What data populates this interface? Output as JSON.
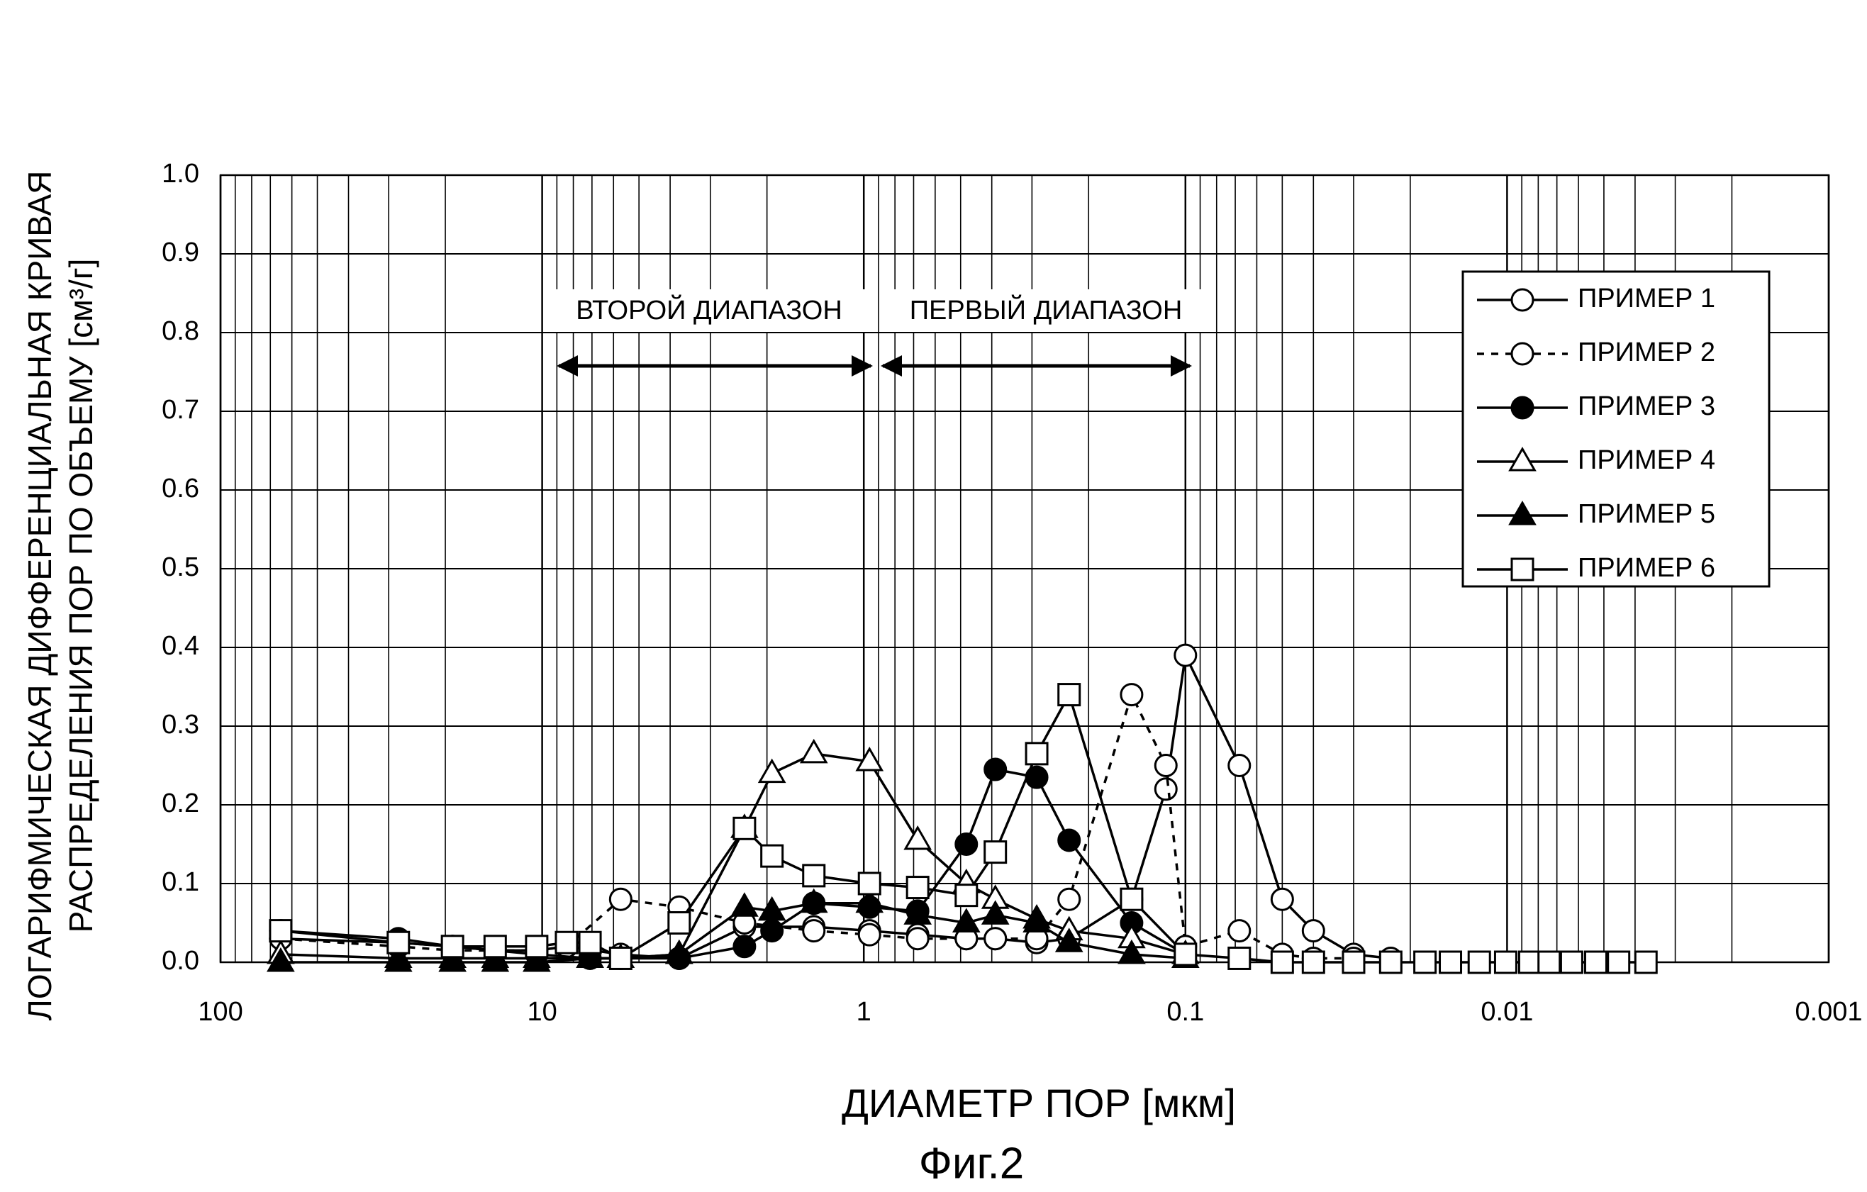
{
  "chart_data": {
    "type": "line",
    "y_title_lines": [
      "ЛОГАРИФМИЧЕСКАЯ ДИФФЕРЕНЦИАЛЬНАЯ КРИВАЯ",
      "РАСПРЕДЕЛЕНИЯ ПОР ПО ОБЪЕМУ [см³/г]"
    ],
    "x_title": "ДИАМЕТР ПОР [мкм]",
    "caption": "Фиг.2",
    "annotations": [
      "ВТОРОЙ ДИАПАЗОН",
      "ПЕРВЫЙ ДИАПАЗОН"
    ],
    "x_log": true,
    "grid": true,
    "minor_grid": true,
    "legend": "upper right",
    "xlim": [
      100,
      0.001
    ],
    "xticks": [
      100,
      10,
      1,
      0.1,
      0.01,
      0.001
    ],
    "ylim": [
      0,
      1
    ],
    "yticks": [
      {
        "value": 0,
        "label": "0.0"
      },
      0.1,
      0.2,
      0.3,
      0.4,
      0.5,
      0.6,
      0.7,
      0.8,
      0.9,
      {
        "value": 1,
        "label": "1.0"
      }
    ],
    "series": [
      {
        "name": "ПРИМЕР 1",
        "color": "#000000",
        "marker": "circle",
        "filled": false,
        "dash": false,
        "x": [
          65,
          28,
          19,
          14,
          10.4,
          8.4,
          5.7,
          3.75,
          2.35,
          1.43,
          0.96,
          0.68,
          0.48,
          0.39,
          0.29,
          0.23,
          0.147,
          0.115,
          0.1,
          0.068,
          0.05,
          0.04,
          0.03,
          0.023
        ],
        "values": [
          0.03,
          0.025,
          0.02,
          0.015,
          0.015,
          0.02,
          0.01,
          0.005,
          0.045,
          0.045,
          0.04,
          0.035,
          0.03,
          0.03,
          0.025,
          0.03,
          0.08,
          0.22,
          0.39,
          0.25,
          0.08,
          0.04,
          0.01,
          0.005
        ]
      },
      {
        "name": "ПРИМЕР 2",
        "color": "#000000",
        "marker": "circle",
        "filled": false,
        "dash": true,
        "x": [
          65,
          28,
          19,
          14,
          10.4,
          8.4,
          5.7,
          3.75,
          2.35,
          1.43,
          0.96,
          0.68,
          0.48,
          0.39,
          0.29,
          0.23,
          0.147,
          0.115,
          0.1,
          0.068,
          0.05,
          0.04,
          0.03
        ],
        "values": [
          0.03,
          0.02,
          0.015,
          0.015,
          0.015,
          0.02,
          0.08,
          0.07,
          0.05,
          0.04,
          0.035,
          0.03,
          0.03,
          0.03,
          0.03,
          0.08,
          0.34,
          0.25,
          0.02,
          0.04,
          0.01,
          0.005,
          0.005
        ]
      },
      {
        "name": "ПРИМЕР 3",
        "color": "#000000",
        "marker": "circle",
        "filled": true,
        "dash": false,
        "x": [
          65,
          28,
          19,
          14,
          10.4,
          7.1,
          5.7,
          3.75,
          2.35,
          1.93,
          1.43,
          0.96,
          0.68,
          0.48,
          0.39,
          0.29,
          0.23,
          0.147,
          0.1
        ],
        "values": [
          0.04,
          0.03,
          0.02,
          0.015,
          0.01,
          0.005,
          0.005,
          0.005,
          0.02,
          0.04,
          0.075,
          0.07,
          0.065,
          0.15,
          0.245,
          0.235,
          0.155,
          0.05,
          0.01
        ]
      },
      {
        "name": "ПРИМЕР 4",
        "color": "#000000",
        "marker": "triangle",
        "filled": false,
        "dash": false,
        "x": [
          65,
          28,
          19,
          14,
          10.4,
          7.1,
          5.7,
          3.75,
          2.35,
          1.93,
          1.43,
          0.96,
          0.68,
          0.48,
          0.39,
          0.29,
          0.23,
          0.147,
          0.1
        ],
        "values": [
          0.01,
          0.005,
          0.005,
          0.005,
          0.005,
          0.005,
          0.005,
          0.01,
          0.17,
          0.24,
          0.265,
          0.255,
          0.155,
          0.1,
          0.08,
          0.055,
          0.04,
          0.03,
          0.01
        ]
      },
      {
        "name": "ПРИМЕР 5",
        "color": "#000000",
        "marker": "triangle",
        "filled": true,
        "dash": false,
        "x": [
          65,
          28,
          19,
          14,
          10.4,
          7.1,
          5.7,
          3.75,
          2.35,
          1.93,
          1.43,
          0.96,
          0.68,
          0.48,
          0.39,
          0.29,
          0.23,
          0.147,
          0.1
        ],
        "values": [
          0,
          0,
          0,
          0,
          0,
          0.005,
          0.005,
          0.01,
          0.07,
          0.065,
          0.075,
          0.075,
          0.06,
          0.05,
          0.06,
          0.05,
          0.025,
          0.01,
          0.005
        ]
      },
      {
        "name": "ПРИМЕР 6",
        "color": "#000000",
        "marker": "square",
        "filled": false,
        "dash": false,
        "x": [
          65,
          28,
          19,
          14,
          10.4,
          8.4,
          7.1,
          5.7,
          3.75,
          2.35,
          1.93,
          1.43,
          0.96,
          0.68,
          0.48,
          0.39,
          0.29,
          0.23,
          0.147,
          0.1,
          0.068,
          0.05,
          0.04,
          0.03,
          0.023,
          0.018,
          0.015,
          0.0122,
          0.0101,
          0.0085,
          0.0074,
          0.0063,
          0.0053,
          0.0045,
          0.0037
        ],
        "values": [
          0.04,
          0.025,
          0.02,
          0.02,
          0.02,
          0.025,
          0.025,
          0.005,
          0.05,
          0.17,
          0.135,
          0.11,
          0.1,
          0.095,
          0.085,
          0.14,
          0.265,
          0.34,
          0.08,
          0.01,
          0.005,
          0,
          0,
          0,
          0,
          0,
          0,
          0,
          0,
          0,
          0,
          0,
          0,
          0,
          0
        ]
      }
    ]
  }
}
